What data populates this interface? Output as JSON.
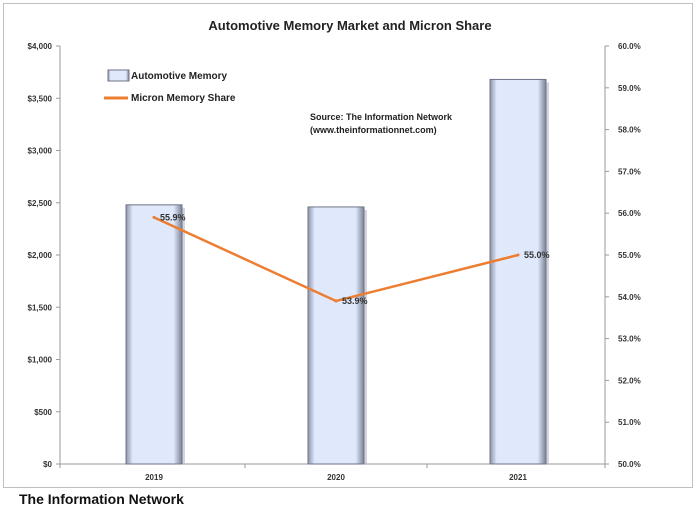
{
  "chart_data": {
    "type": "bar",
    "title": "Automotive Memory Market and Micron Share",
    "categories": [
      "2019",
      "2020",
      "2021"
    ],
    "series": [
      {
        "name": "Automotive Memory",
        "type": "bar",
        "axis": "left",
        "values": [
          2480,
          2460,
          3680
        ],
        "color": "#dde8fb"
      },
      {
        "name": "Micron Memory Share",
        "type": "line",
        "axis": "right",
        "values": [
          55.9,
          53.9,
          55.0
        ],
        "color": "#ed7d31",
        "labels": [
          "55.9%",
          "53.9%",
          "55.0%"
        ]
      }
    ],
    "y_left": {
      "range": [
        0,
        4000
      ],
      "ticks": [
        "$0",
        "$500",
        "$1,000",
        "$1,500",
        "$2,000",
        "$2,500",
        "$3,000",
        "$3,500",
        "$4,000"
      ]
    },
    "y_right": {
      "range": [
        50,
        60
      ],
      "ticks": [
        "50.0%",
        "51.0%",
        "52.0%",
        "53.0%",
        "54.0%",
        "55.0%",
        "56.0%",
        "57.0%",
        "58.0%",
        "59.0%",
        "60.0%"
      ]
    },
    "source_line1": "Source: The Information Network",
    "source_line2": "(www.theinformationnet.com)",
    "grid": false,
    "legend_position": "top-left"
  },
  "caption": "The Information Network"
}
